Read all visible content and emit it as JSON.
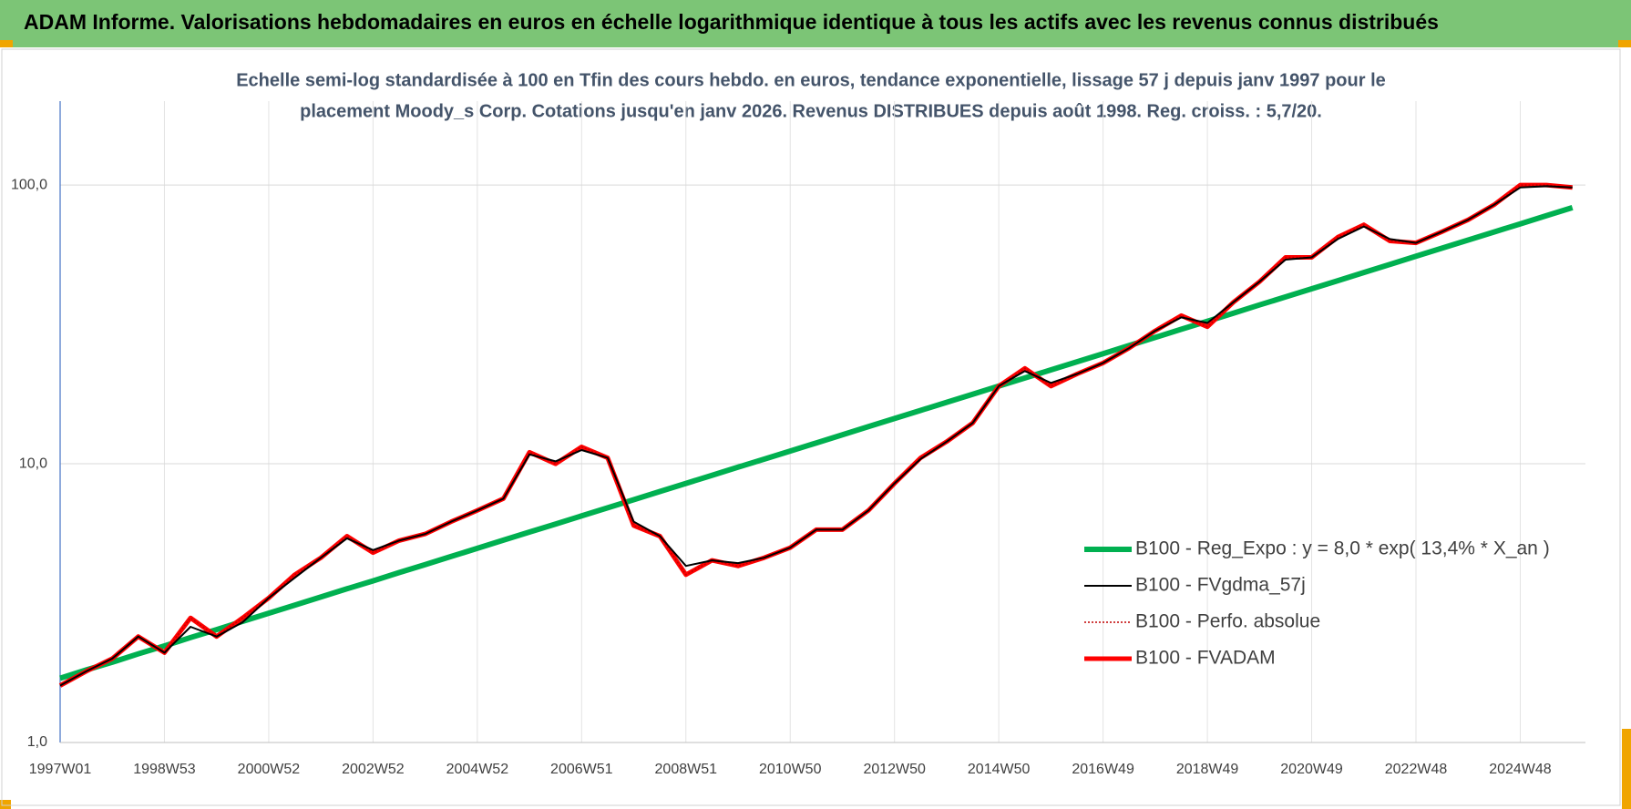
{
  "chart_data": {
    "type": "line",
    "title": "ADAM Informe. Valorisations hebdomadaires en euros en échelle logarithmique identique à tous les actifs avec les revenus connus distribués",
    "subtitle": [
      "Echelle semi-log standardisée à 100 en Tfin des cours hebdo. en euros, tendance exponentielle, lissage 57 j depuis janv 1997 pour le",
      "placement Moody_s Corp. Cotations jusqu'en janv 2026. Revenus DISTRIBUES depuis août 1998. Reg. croiss. : 5,7/20."
    ],
    "categories": [
      "1997W01",
      null,
      null,
      null,
      "1998W53",
      null,
      null,
      null,
      "2000W52",
      null,
      null,
      null,
      "2002W52",
      null,
      null,
      null,
      "2004W52",
      null,
      null,
      null,
      "2006W51",
      null,
      null,
      null,
      "2008W51",
      null,
      null,
      null,
      "2010W50",
      null,
      null,
      null,
      "2012W50",
      null,
      null,
      null,
      "2014W50",
      null,
      null,
      null,
      "2016W49",
      null,
      null,
      null,
      "2018W49",
      null,
      null,
      null,
      "2020W49",
      null,
      null,
      null,
      "2022W48",
      null,
      null,
      null,
      "2024W48",
      null,
      null
    ],
    "log_scale": true,
    "ylim": [
      1,
      200
    ],
    "yticks": [
      {
        "value": 1,
        "label": "1,0"
      },
      {
        "value": 10,
        "label": "10,0"
      },
      {
        "value": 100,
        "label": "100,0"
      }
    ],
    "grid": true,
    "legend": "right",
    "series": [
      {
        "name": "B100 - Reg_Expo : y = 8,0 * exp( 13,4% *  X_an )",
        "color": "#00b050",
        "line_width": 6,
        "style": "solid",
        "values": [
          1.7,
          1.82,
          1.94,
          2.08,
          2.22,
          2.38,
          2.54,
          2.72,
          2.91,
          3.11,
          3.33,
          3.56,
          3.8,
          4.07,
          4.35,
          4.65,
          4.97,
          5.32,
          5.69,
          6.08,
          6.5,
          6.95,
          7.43,
          7.95,
          8.5,
          9.09,
          9.72,
          10.39,
          11.11,
          11.88,
          12.71,
          13.59,
          14.53,
          15.54,
          16.61,
          17.76,
          19.0,
          20.31,
          21.72,
          23.23,
          24.84,
          26.56,
          28.4,
          30.37,
          32.47,
          34.72,
          37.13,
          39.7,
          42.45,
          45.39,
          48.54,
          51.9,
          55.5,
          59.35,
          63.46,
          67.86,
          72.56,
          77.59,
          82.97
        ]
      },
      {
        "name": "B100 - FVgdma_57j",
        "color": "#000000",
        "line_width": 2,
        "style": "solid",
        "values": [
          1.6,
          1.8,
          2.0,
          2.4,
          2.1,
          2.6,
          2.4,
          2.7,
          3.3,
          3.9,
          4.6,
          5.4,
          4.9,
          5.3,
          5.6,
          6.2,
          6.8,
          7.5,
          10.8,
          10.2,
          11.2,
          10.5,
          6.2,
          5.5,
          4.3,
          4.5,
          4.4,
          4.6,
          5.0,
          5.8,
          5.8,
          6.8,
          8.5,
          10.4,
          12,
          14,
          19,
          21.5,
          19.5,
          21,
          23,
          26,
          30,
          33.5,
          32,
          38,
          45,
          54,
          55,
          64,
          71,
          64,
          62,
          68,
          75,
          85,
          98,
          99,
          98
        ]
      },
      {
        "name": "B100 - Perfo. absolue",
        "color": "#c00000",
        "line_width": 1.5,
        "style": "dotted",
        "values": [
          1.6,
          1.8,
          2.0,
          2.4,
          2.1,
          2.8,
          2.4,
          2.8,
          3.3,
          4.0,
          4.6,
          5.5,
          4.8,
          5.3,
          5.6,
          6.2,
          6.8,
          7.5,
          11.0,
          10.0,
          11.5,
          10.5,
          6.0,
          5.5,
          4.0,
          4.5,
          4.3,
          4.6,
          5.0,
          5.8,
          5.8,
          6.8,
          8.5,
          10.5,
          12,
          14,
          19,
          22,
          19,
          21,
          23,
          26,
          30,
          34,
          31,
          38,
          45,
          55,
          55,
          65,
          72,
          63,
          62,
          68,
          75,
          85,
          100,
          100,
          98
        ]
      },
      {
        "name": "B100 - FVADAM",
        "color": "#ff0000",
        "line_width": 5,
        "style": "solid",
        "values": [
          1.6,
          1.8,
          2.0,
          2.4,
          2.1,
          2.8,
          2.4,
          2.8,
          3.3,
          4.0,
          4.6,
          5.5,
          4.8,
          5.3,
          5.6,
          6.2,
          6.8,
          7.5,
          11.0,
          10.0,
          11.5,
          10.5,
          6.0,
          5.5,
          4.0,
          4.5,
          4.3,
          4.6,
          5.0,
          5.8,
          5.8,
          6.8,
          8.5,
          10.5,
          12,
          14,
          19,
          22,
          19,
          21,
          23,
          26,
          30,
          34,
          31,
          38,
          45,
          55,
          55,
          65,
          72,
          63,
          62,
          68,
          75,
          85,
          100,
          100,
          98
        ]
      }
    ]
  }
}
